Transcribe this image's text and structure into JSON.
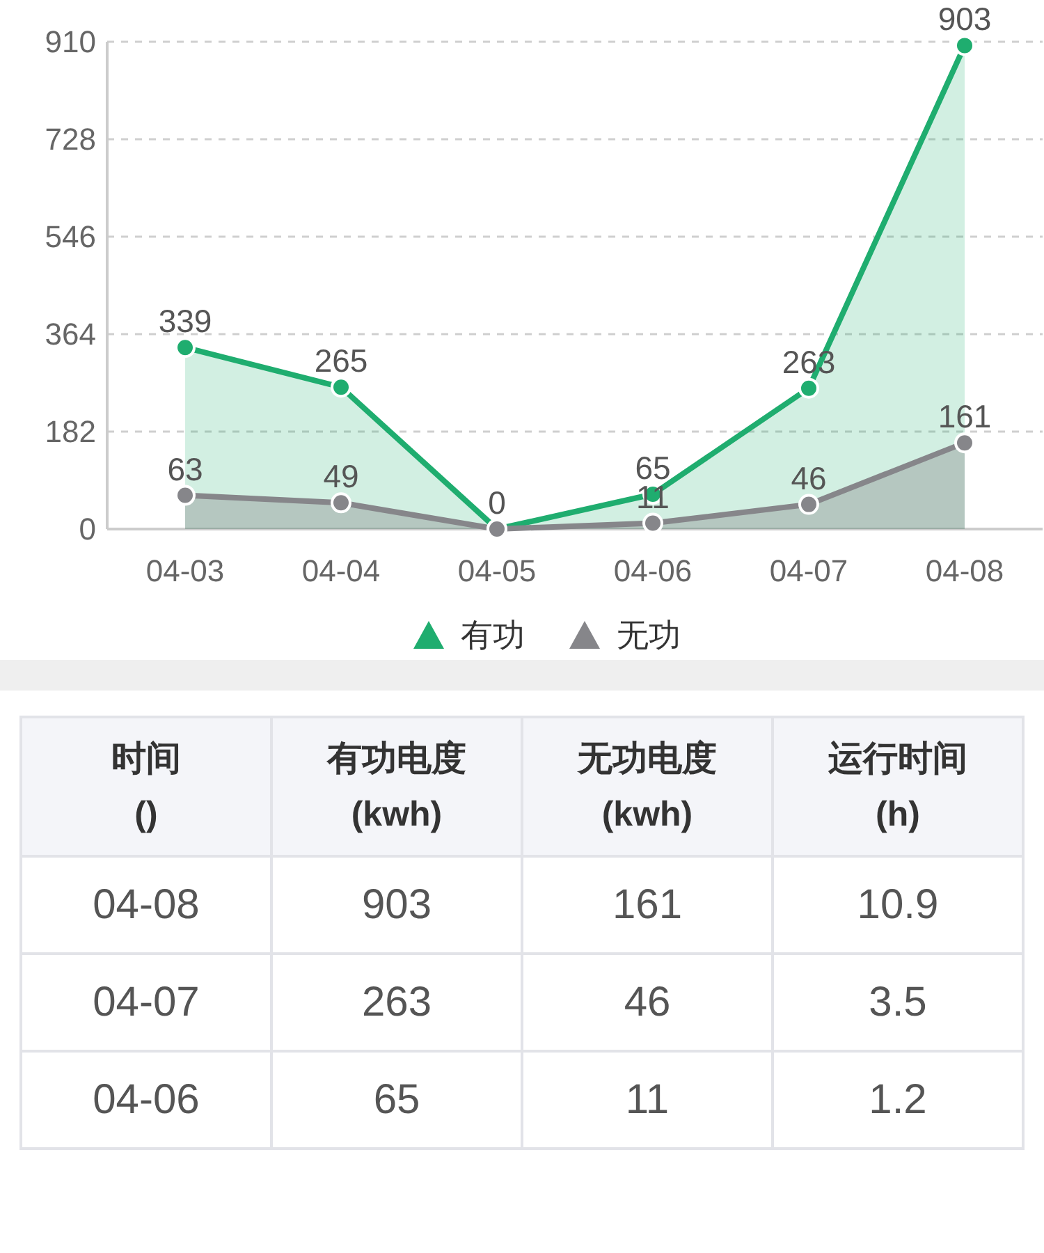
{
  "chart_data": [
    {
      "type": "area",
      "categories": [
        "04-03",
        "04-04",
        "04-05",
        "04-06",
        "04-07",
        "04-08"
      ],
      "series": [
        {
          "name": "有功",
          "color": "#1fad6f",
          "values": [
            339,
            265,
            0,
            65,
            263,
            903
          ],
          "value_labels": [
            "339",
            "265",
            "0",
            "65",
            "263",
            "903"
          ]
        },
        {
          "name": "无功",
          "color": "#86868a",
          "values": [
            63,
            49,
            0,
            11,
            46,
            161
          ],
          "value_labels": [
            "63",
            "49",
            null,
            "11",
            "46",
            "161"
          ]
        }
      ],
      "ylim": [
        0,
        910
      ],
      "yticks": [
        0,
        182,
        364,
        546,
        728,
        910
      ],
      "grid": "y",
      "legend": "bottom",
      "marker": "circle"
    },
    {
      "type": "other",
      "xlabel": "时间\n()",
      "categories": [
        "有功电度\n(kwh)",
        "无功电度\n(kwh)",
        "运行时间\n(h)"
      ],
      "series": [
        {
          "name": "04-08",
          "values": [
            903,
            161,
            10.9
          ]
        },
        {
          "name": "04-07",
          "values": [
            263,
            46,
            3.5
          ]
        },
        {
          "name": "04-06",
          "values": [
            65,
            11,
            1.2
          ]
        }
      ],
      "data_labels": true
    }
  ]
}
